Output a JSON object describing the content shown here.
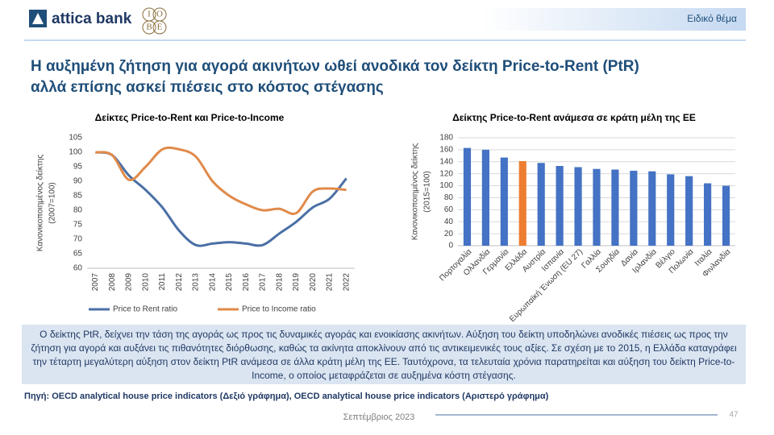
{
  "header": {
    "logo": "attica bank",
    "iobe": [
      "Ι",
      "Ο",
      "Β",
      "Ε"
    ],
    "tag": "Ειδικό θέμα"
  },
  "title": [
    "Η αυξημένη ζήτηση για αγορά ακινήτων ωθεί ανοδικά τον δείκτη Price-to-Rent (PtR)",
    "αλλά επίσης ασκεί πιέσεις στο κόστος στέγασης"
  ],
  "chart_data": [
    {
      "type": "line",
      "title": "Δείκτες Price-to-Rent και Price-to-Income",
      "ylabel": [
        "Κανονικοποιημένος δείκτης",
        "(2007=100)"
      ],
      "categories": [
        "2007",
        "2008",
        "2009",
        "2010",
        "2011",
        "2012",
        "2013",
        "2014",
        "2015",
        "2016",
        "2017",
        "2018",
        "2019",
        "2020",
        "2021",
        "2022"
      ],
      "series": [
        {
          "name": "Price to Rent ratio",
          "color": "#4a6fa5",
          "values": [
            100,
            99,
            92,
            87,
            81,
            73,
            68,
            68.5,
            69,
            68.5,
            68,
            72,
            76,
            81,
            84,
            91
          ]
        },
        {
          "name": "Price to Income ratio",
          "color": "#e08a4a",
          "values": [
            100,
            99,
            90.5,
            95,
            101,
            101,
            98.5,
            90,
            85,
            82,
            80,
            80.5,
            79,
            86.5,
            87.5,
            87
          ]
        }
      ],
      "ylim": [
        60,
        105
      ],
      "yticks": [
        60,
        65,
        70,
        75,
        80,
        85,
        90,
        95,
        100,
        105
      ],
      "grid": false,
      "legend": "bottom"
    },
    {
      "type": "bar",
      "title": "Δείκτης Price-to-Rent ανάμεσα σε κράτη μέλη της ΕΕ",
      "ylabel": [
        "Κανονικοποιημένος δείκτης",
        "(2015=100)"
      ],
      "categories": [
        "Πορτογαλία",
        "Ολλανδία",
        "Γερμανία",
        "Ελλάδα",
        "Αυστρία",
        "Ισπανία",
        "Ευρωπαϊκή Ένωση (EU 27)",
        "Γαλλία",
        "Σουηδία",
        "Δανία",
        "Ιρλανδία",
        "Βέλγιο",
        "Πολωνία",
        "Ιταλία",
        "Φινλανδία"
      ],
      "values": [
        163,
        160,
        147,
        141,
        138,
        133,
        131,
        128,
        127,
        125,
        124,
        119,
        116,
        104,
        100
      ],
      "colors": [
        "#4472c4",
        "#4472c4",
        "#4472c4",
        "#ed7d31",
        "#4472c4",
        "#4472c4",
        "#4472c4",
        "#4472c4",
        "#4472c4",
        "#4472c4",
        "#4472c4",
        "#4472c4",
        "#4472c4",
        "#4472c4",
        "#4472c4"
      ],
      "ylim": [
        0,
        180
      ],
      "yticks": [
        0,
        20,
        40,
        60,
        80,
        100,
        120,
        140,
        160,
        180
      ],
      "grid": true
    }
  ],
  "paragraph": "Ο δείκτης PtR, δείχνει την τάση της αγοράς ως προς τις δυναμικές αγοράς και ενοικίασης ακινήτων. Αύξηση του δείκτη υποδηλώνει ανοδικές πιέσεις ως προς την ζήτηση για αγορά και αυξάνει τις πιθανότητες διόρθωσης, καθώς τα ακίνητα αποκλίνουν από τις αντικειμενικές τους αξίες. Σε σχέση με το 2015, η Ελλάδα καταγράφει την τέταρτη μεγαλύτερη αύξηση στον δείκτη PtR ανάμεσα σε άλλα κράτη μέλη της ΕΕ. Ταυτόχρονα, τα τελευταία χρόνια παρατηρείται και αύξηση του δείκτη Price-to-Income, ο οποίος μεταφράζεται σε αυξημένα κόστη στέγασης.",
  "source": "Πηγή: OECD analytical  house price indicators (Δεξιό γράφημα), OECD analytical  house price indicators (Αριστερό γράφημα)",
  "footer": {
    "date": "Σεπτέμβριος 2023",
    "page": "47"
  }
}
